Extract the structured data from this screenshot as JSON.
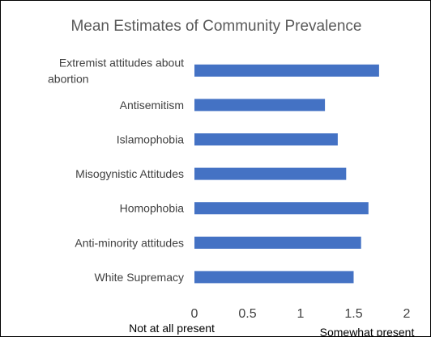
{
  "chart_data": {
    "type": "bar",
    "orientation": "horizontal",
    "title": "Mean Estimates of Community Prevalence",
    "categories": [
      "Extremist attitudes about abortion",
      "Antisemitism",
      "Islamophobia",
      "Misogynistic Attitudes",
      "Homophobia",
      "Anti-minority attitudes",
      "White Supremacy"
    ],
    "category_lines": [
      [
        "Extremist attitudes about",
        "abortion"
      ],
      [
        "Antisemitism"
      ],
      [
        "Islamophobia"
      ],
      [
        "Misogynistic Attitudes"
      ],
      [
        "Homophobia"
      ],
      [
        "Anti-minority attitudes"
      ],
      [
        "White Supremacy"
      ]
    ],
    "values": [
      1.74,
      1.23,
      1.35,
      1.43,
      1.64,
      1.57,
      1.5
    ],
    "xlim": [
      0,
      2
    ],
    "xticks": [
      0,
      0.5,
      1,
      1.5,
      2
    ],
    "xtick_labels": [
      "0",
      "0.5",
      "1",
      "1.5",
      "2"
    ],
    "xaxis_end_labels": [
      "Not at all present",
      "Somewhat present"
    ],
    "bar_color": "#4472c4",
    "grid": false,
    "legend": "none"
  }
}
